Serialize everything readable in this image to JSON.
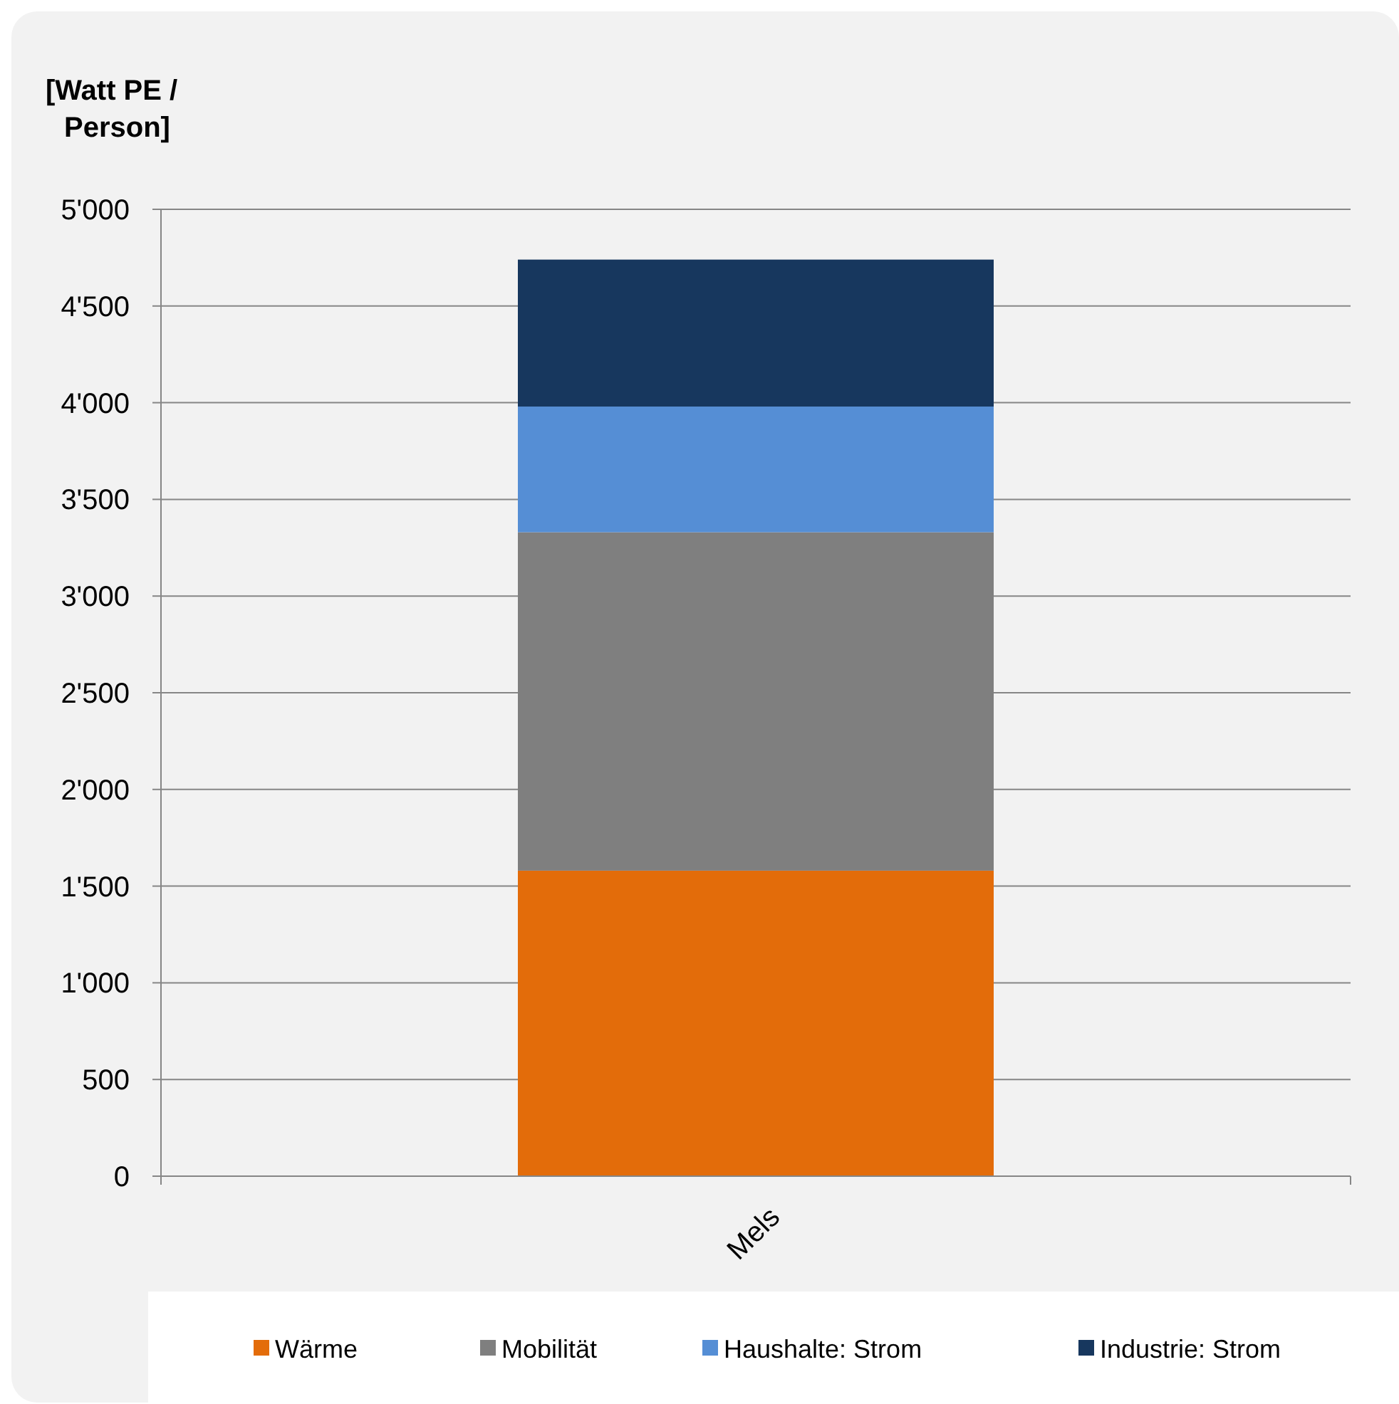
{
  "chart_data": {
    "type": "bar",
    "stacked": true,
    "ylabel": "[Watt PE / Person]",
    "categories": [
      "Mels"
    ],
    "series": [
      {
        "name": "Wärme",
        "color": "#e36c0a",
        "values": [
          1580
        ]
      },
      {
        "name": "Mobilität",
        "color": "#7f7f7f",
        "values": [
          1750
        ]
      },
      {
        "name": "Haushalte: Strom",
        "color": "#558ed5",
        "values": [
          650
        ]
      },
      {
        "name": "Industrie: Strom",
        "color": "#17375e",
        "values": [
          760
        ]
      }
    ],
    "ylim": [
      0,
      5000
    ],
    "yticks": [
      0,
      500,
      {
        "value": 1000,
        "label": "1'000"
      },
      {
        "value": 1500,
        "label": "1'500"
      },
      {
        "value": 2000,
        "label": "2'000"
      },
      {
        "value": 2500,
        "label": "2'500"
      },
      {
        "value": 3000,
        "label": "3'000"
      },
      {
        "value": 3500,
        "label": "3'500"
      },
      {
        "value": 4000,
        "label": "4'000"
      },
      {
        "value": 4500,
        "label": "4'500"
      },
      {
        "value": 5000,
        "label": "5'000"
      }
    ],
    "grid": "y",
    "legend": "bottom"
  }
}
